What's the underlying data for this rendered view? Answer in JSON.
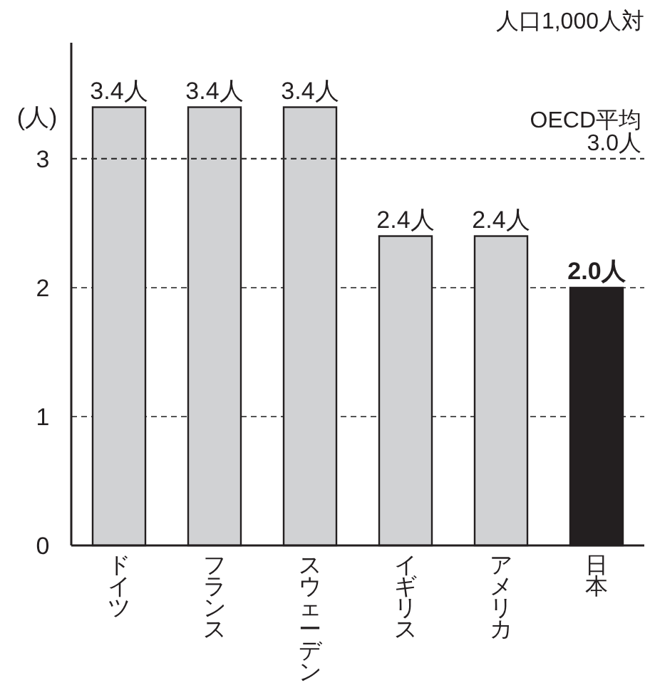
{
  "chart_data": {
    "type": "bar",
    "annotations": [
      "人口1,000人対"
    ],
    "ylabel": "(人)",
    "categories": [
      "ドイツ",
      "フランス",
      "スウェーデン",
      "イギリス",
      "アメリカ",
      "日本"
    ],
    "values": [
      3.4,
      3.4,
      3.4,
      2.4,
      2.4,
      2.0
    ],
    "value_labels": [
      "3.4人",
      "3.4人",
      "3.4人",
      "2.4人",
      "2.4人",
      "2.0人"
    ],
    "colors": [
      "#d1d2d4",
      "#d1d2d4",
      "#d1d2d4",
      "#d1d2d4",
      "#d1d2d4",
      "#231f20"
    ],
    "ylim": [
      0,
      3.9
    ],
    "yticks": [
      0,
      1,
      2,
      3
    ],
    "grid": "y",
    "ref_lines": [
      {
        "axis": "y",
        "value": 3.0,
        "label": "OECD平均 3.0人",
        "line_style": "dashed"
      }
    ]
  }
}
